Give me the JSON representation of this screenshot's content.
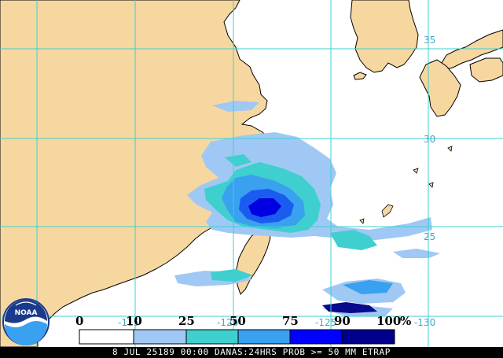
{
  "map": {
    "lat_labels": [
      "35",
      "30",
      "25"
    ],
    "lon_labels": [
      "-115",
      "-120",
      "-125",
      "-130"
    ]
  },
  "legend": {
    "values": [
      "0",
      "10",
      "25",
      "50",
      "75",
      "90",
      "100"
    ],
    "unit": "%",
    "colors": [
      "#ffffff",
      "#9fc8f5",
      "#3fcfcf",
      "#3aa0f0",
      "#1a5cf0",
      "#0000e0",
      "#0a0a8c"
    ]
  },
  "footer": {
    "text": "8 JUL 25189 00:00 DANAS:24HRS PROB >= 50 MM ETRAP"
  },
  "colors": {
    "land": "#f7d7a0",
    "ocean": "#ffffff",
    "grid": "#3fcfcf",
    "coast": "#000000"
  },
  "logo": {
    "text": "NOAA"
  }
}
